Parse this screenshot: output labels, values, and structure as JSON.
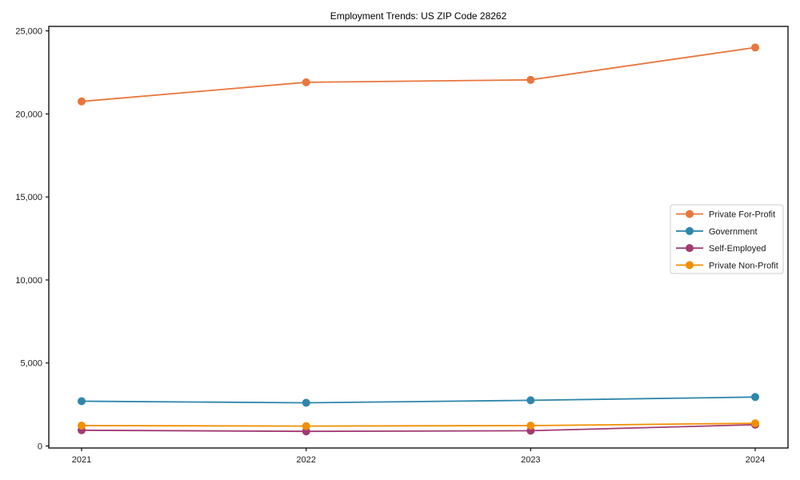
{
  "chart_data": {
    "type": "line",
    "title": "Employment Trends: US ZIP Code 28262",
    "xlabel": "",
    "ylabel": "",
    "x_categories": [
      "2021",
      "2022",
      "2023",
      "2024"
    ],
    "y_ticks": [
      0,
      5000,
      10000,
      15000,
      20000,
      25000
    ],
    "y_tick_labels": [
      "0",
      "5,000",
      "10,000",
      "15,000",
      "20,000",
      "25,000"
    ],
    "ylim": [
      0,
      25000
    ],
    "grid": false,
    "legend_position": "center-right",
    "marker": "circle",
    "series": [
      {
        "name": "Private For-Profit",
        "color": "#E8763C",
        "values": [
          20750,
          21900,
          22050,
          24000
        ]
      },
      {
        "name": "Government",
        "color": "#2E86AB",
        "values": [
          2700,
          2600,
          2750,
          2950
        ]
      },
      {
        "name": "Self-Employed",
        "color": "#A23B72",
        "values": [
          950,
          880,
          920,
          1280
        ]
      },
      {
        "name": "Private Non-Profit",
        "color": "#F18F01",
        "values": [
          1230,
          1200,
          1230,
          1370
        ]
      }
    ],
    "colors": {
      "axis": "#000000",
      "background": "#ffffff",
      "legend_border": "#cccccc"
    }
  }
}
